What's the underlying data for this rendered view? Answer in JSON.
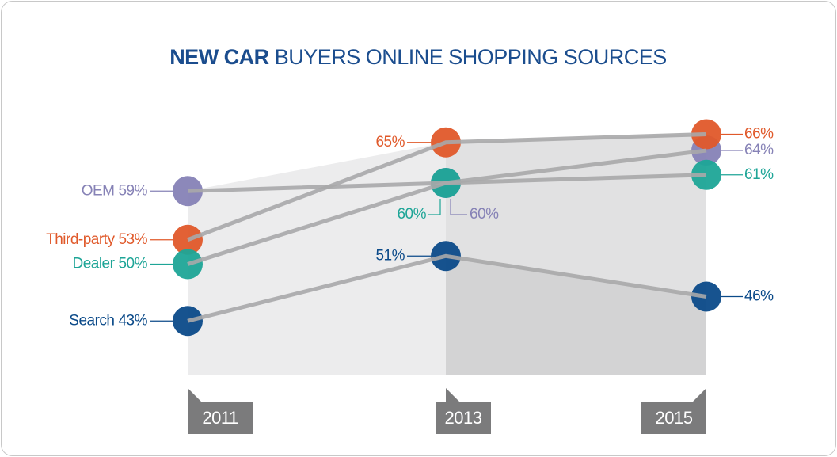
{
  "chart_data": {
    "type": "line",
    "title": [
      "NEW CAR",
      "BUYERS ONLINE SHOPPING SOURCES"
    ],
    "categories": [
      "2011",
      "2013",
      "2015"
    ],
    "ylim": [
      36,
      72
    ],
    "series": [
      {
        "name": "OEM",
        "color": "#8682b6",
        "values": [
          59,
          60,
          64
        ],
        "value_labels": [
          "59%",
          "60%",
          "64%"
        ]
      },
      {
        "name": "Third-party",
        "color": "#e0592a",
        "values": [
          53,
          65,
          66
        ],
        "value_labels": [
          "53%",
          "65%",
          "66%"
        ]
      },
      {
        "name": "Dealer",
        "color": "#1ea597",
        "values": [
          50,
          60,
          61
        ],
        "value_labels": [
          "50%",
          "60%",
          "61%"
        ]
      },
      {
        "name": "Search",
        "color": "#0b4a89",
        "values": [
          43,
          51,
          46
        ],
        "value_labels": [
          "43%",
          "51%",
          "46%"
        ]
      }
    ]
  }
}
